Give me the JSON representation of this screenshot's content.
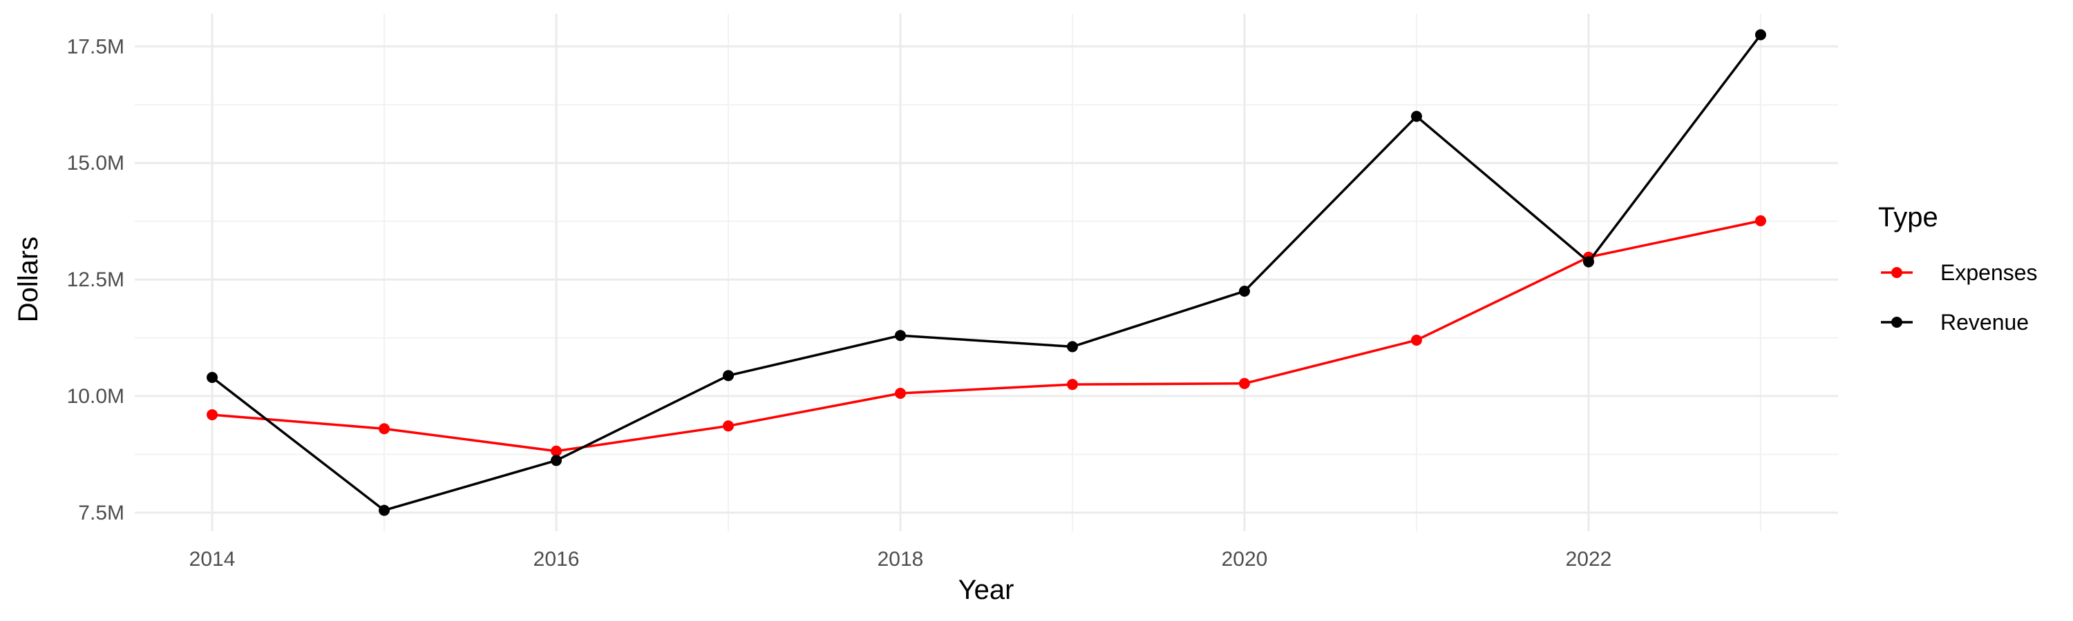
{
  "chart_data": {
    "type": "line",
    "x": [
      2014,
      2015,
      2016,
      2017,
      2018,
      2019,
      2020,
      2021,
      2022,
      2023
    ],
    "series": [
      {
        "name": "Expenses",
        "color": "#ff0000",
        "values": [
          9.6,
          9.3,
          8.82,
          9.36,
          10.06,
          10.25,
          10.27,
          11.2,
          12.98,
          13.76
        ]
      },
      {
        "name": "Revenue",
        "color": "#000000",
        "values": [
          10.4,
          7.55,
          8.62,
          10.44,
          11.3,
          11.06,
          12.25,
          16.0,
          12.88,
          17.75
        ]
      }
    ],
    "xlabel": "Year",
    "ylabel": "Dollars",
    "x_ticks": [
      2014,
      2016,
      2018,
      2020,
      2022
    ],
    "x_tick_labels": [
      "2014",
      "2016",
      "2018",
      "2020",
      "2022"
    ],
    "y_ticks": [
      7.5,
      10.0,
      12.5,
      15.0,
      17.5
    ],
    "y_tick_labels": [
      "7.5M",
      "10.0M",
      "12.5M",
      "15.0M",
      "17.5M"
    ],
    "y_unit": "millions of dollars",
    "xlim": [
      2013.55,
      2023.45
    ],
    "ylim": [
      7.1,
      18.2
    ],
    "grid": true,
    "legend": {
      "title": "Type",
      "position": "right"
    }
  }
}
